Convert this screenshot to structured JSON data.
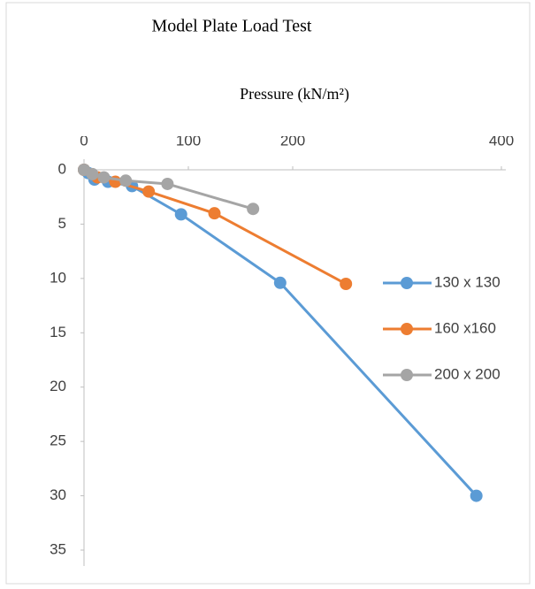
{
  "chart_data": {
    "type": "line",
    "title": "Model Plate Load Test",
    "x_label": "Pressure (kN/m²)",
    "xlim": [
      0,
      400
    ],
    "xticks": [
      0,
      100,
      200,
      400
    ],
    "ylim": [
      0,
      35
    ],
    "yticks": [
      0,
      5,
      10,
      15,
      20,
      25,
      30,
      35
    ],
    "y_inverted": true,
    "x_axis_top": true,
    "series": [
      {
        "name": "130 x 130",
        "color": "#5b9bd5",
        "x": [
          0,
          4,
          10,
          23,
          46,
          93,
          188,
          376
        ],
        "values": [
          0,
          0.3,
          0.9,
          1.1,
          1.5,
          4.1,
          10.4,
          30
        ]
      },
      {
        "name": "160 x160",
        "color": "#ed7d31",
        "x": [
          0,
          13,
          30,
          62,
          125,
          251
        ],
        "values": [
          0,
          0.7,
          1.1,
          2.0,
          4.0,
          10.5
        ]
      },
      {
        "name": "200 x 200",
        "color": "#a5a5a5",
        "x": [
          0,
          8,
          19,
          40,
          80,
          162
        ],
        "values": [
          0,
          0.4,
          0.7,
          1.0,
          1.3,
          3.6
        ]
      }
    ]
  }
}
